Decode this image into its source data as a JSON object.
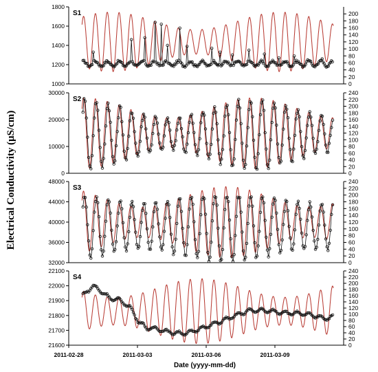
{
  "colors": {
    "ec": "#111111",
    "tide": "#b5322a"
  },
  "figure": {
    "ylabel": "Electrical Conductivity (μS/cm)",
    "xlabel": "Date (yyyy-mm-dd)",
    "x_ticks": [
      "2011-02-28",
      "2011-03-03",
      "2011-03-06",
      "2011-03-09"
    ]
  },
  "chart_data": [
    {
      "type": "line",
      "title": "S1",
      "x_range": [
        "2011-02-28",
        "2011-03-12"
      ],
      "ylim": [
        1000,
        1800
      ],
      "y_ticks": [
        1000,
        1200,
        1400,
        1600,
        1800
      ],
      "y2lim": [
        0,
        220
      ],
      "y2_ticks": [
        0,
        20,
        40,
        60,
        80,
        100,
        120,
        140,
        160,
        180,
        200
      ],
      "ec_days": [
        0.62,
        11.55
      ],
      "tide_days": [
        0.58,
        11.55
      ],
      "series": [
        {
          "role": "ec",
          "mean": 1210,
          "amp": 25,
          "noise": 12,
          "spikes": [
            [
              1.06,
              1330
            ],
            [
              2.72,
              1460
            ],
            [
              3.32,
              1480
            ],
            [
              3.78,
              1640
            ],
            [
              4.05,
              1620
            ],
            [
              4.33,
              1400
            ],
            [
              4.85,
              1580
            ],
            [
              5.15,
              1390
            ],
            [
              6.25,
              1370
            ],
            [
              6.62,
              1330
            ],
            [
              7.15,
              1300
            ],
            [
              7.85,
              1350
            ],
            [
              8.55,
              1310
            ],
            [
              9.15,
              1270
            ],
            [
              9.85,
              1290
            ],
            [
              10.45,
              1250
            ],
            [
              11.05,
              1260
            ]
          ]
        },
        {
          "role": "tide",
          "mean": 120,
          "amp": 60,
          "amp_var": 25
        }
      ]
    },
    {
      "type": "line",
      "title": "S2",
      "x_range": [
        "2011-02-28",
        "2011-03-12"
      ],
      "ylim": [
        0,
        30000
      ],
      "y_ticks": [
        0,
        10000,
        20000,
        30000
      ],
      "y2lim": [
        0,
        240
      ],
      "y2_ticks": [
        0,
        20,
        40,
        60,
        80,
        100,
        120,
        140,
        160,
        180,
        200,
        220,
        240
      ],
      "ec_days": [
        0.62,
        11.55
      ],
      "tide_days": [
        0.58,
        11.55
      ],
      "series": [
        {
          "role": "ec",
          "mean": 14500,
          "amp": 9500,
          "amp_var": 3500,
          "noise": 900,
          "lag": 0.04
        },
        {
          "role": "tide",
          "mean": 120,
          "amp": 75,
          "amp_var": 30
        }
      ]
    },
    {
      "type": "line",
      "title": "S3",
      "x_range": [
        "2011-02-28",
        "2011-03-12"
      ],
      "ylim": [
        32000,
        48000
      ],
      "y_ticks": [
        32000,
        36000,
        40000,
        44000,
        48000
      ],
      "y2lim": [
        0,
        240
      ],
      "y2_ticks": [
        0,
        20,
        40,
        60,
        80,
        100,
        120,
        140,
        160,
        180,
        200,
        220,
        240
      ],
      "ec_days": [
        0.62,
        11.55
      ],
      "tide_days": [
        0.58,
        11.55
      ],
      "series": [
        {
          "role": "ec",
          "mean": 39200,
          "amp": 5800,
          "amp_var": 1200,
          "noise": 300,
          "lag": 0.05,
          "clip_top": 45000
        },
        {
          "role": "tide",
          "mean": 120,
          "amp": 75,
          "amp_var": 30
        }
      ]
    },
    {
      "type": "line",
      "title": "S4",
      "x_range": [
        "2011-02-28",
        "2011-03-12"
      ],
      "ylim": [
        21600,
        22100
      ],
      "y_ticks": [
        21600,
        21700,
        21800,
        21900,
        22000,
        22100
      ],
      "y2lim": [
        0,
        240
      ],
      "y2_ticks": [
        0,
        20,
        40,
        60,
        80,
        100,
        120,
        140,
        160,
        180,
        200,
        220,
        240
      ],
      "ec_days": [
        0.62,
        11.55
      ],
      "tide_days": [
        0.58,
        11.55
      ],
      "series": [
        {
          "role": "ec",
          "amp": 12,
          "noise": 4,
          "trend": [
            [
              0.62,
              21935
            ],
            [
              1.05,
              22000
            ],
            [
              1.45,
              21960
            ],
            [
              1.8,
              21915
            ],
            [
              2.2,
              21905
            ],
            [
              2.65,
              21860
            ],
            [
              3.05,
              21760
            ],
            [
              3.4,
              21715
            ],
            [
              3.9,
              21710
            ],
            [
              4.3,
              21690
            ],
            [
              4.8,
              21680
            ],
            [
              5.3,
              21685
            ],
            [
              5.8,
              21715
            ],
            [
              6.3,
              21740
            ],
            [
              6.8,
              21770
            ],
            [
              7.3,
              21800
            ],
            [
              7.8,
              21830
            ],
            [
              8.3,
              21835
            ],
            [
              8.8,
              21830
            ],
            [
              9.3,
              21820
            ],
            [
              9.8,
              21815
            ],
            [
              10.3,
              21810
            ],
            [
              10.8,
              21795
            ],
            [
              11.2,
              21780
            ],
            [
              11.55,
              21790
            ]
          ]
        },
        {
          "role": "tide",
          "mean": 110,
          "amp": 75,
          "amp_var": 30
        }
      ]
    }
  ]
}
